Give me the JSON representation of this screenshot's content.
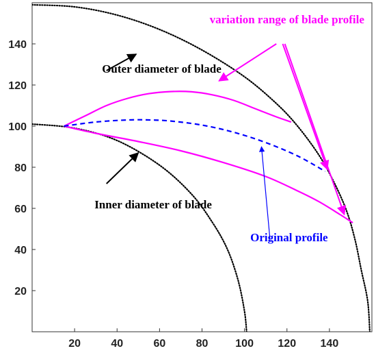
{
  "chart_data": {
    "type": "line",
    "title": "",
    "xlabel": "",
    "ylabel": "",
    "xlim": [
      0,
      160
    ],
    "ylim": [
      0,
      160
    ],
    "xticks": [
      20,
      40,
      60,
      80,
      100,
      120,
      140
    ],
    "yticks": [
      20,
      40,
      60,
      80,
      100,
      120,
      140
    ],
    "grid": false,
    "series": [
      {
        "color": "#000000",
        "style": "dotted",
        "points": [
          [
            0,
            101
          ],
          [
            20,
            99
          ],
          [
            40,
            93
          ],
          [
            60,
            81
          ],
          [
            75,
            67
          ],
          [
            85,
            53
          ],
          [
            92,
            40
          ],
          [
            97,
            25
          ],
          [
            100,
            10
          ],
          [
            101,
            0
          ]
        ]
      },
      {
        "color": "#000000",
        "style": "dotted",
        "points": [
          [
            0,
            159
          ],
          [
            20,
            158
          ],
          [
            40,
            154
          ],
          [
            60,
            147
          ],
          [
            80,
            137
          ],
          [
            100,
            124
          ],
          [
            115,
            111
          ],
          [
            125,
            100
          ],
          [
            135,
            86
          ],
          [
            142,
            73
          ],
          [
            148,
            59
          ],
          [
            152,
            45
          ],
          [
            155,
            30
          ],
          [
            158,
            15
          ],
          [
            159,
            0
          ]
        ]
      },
      {
        "color": "#ff00ff",
        "style": "solid",
        "points": [
          [
            15,
            100
          ],
          [
            25,
            105
          ],
          [
            35,
            110
          ],
          [
            45,
            113.5
          ],
          [
            55,
            115.8
          ],
          [
            65,
            116.8
          ],
          [
            75,
            116.7
          ],
          [
            85,
            115.2
          ],
          [
            95,
            112.5
          ],
          [
            105,
            108.5
          ],
          [
            115,
            104.5
          ],
          [
            122,
            102
          ]
        ]
      },
      {
        "color": "#ff00ff",
        "style": "solid",
        "points": [
          [
            15,
            100
          ],
          [
            30,
            96.5
          ],
          [
            50,
            92.5
          ],
          [
            70,
            88
          ],
          [
            90,
            82.3
          ],
          [
            110,
            75.5
          ],
          [
            125,
            68.5
          ],
          [
            135,
            63.3
          ],
          [
            145,
            57
          ],
          [
            151,
            53
          ]
        ]
      },
      {
        "color": "#0000ff",
        "style": "dashed",
        "points": [
          [
            15,
            100
          ],
          [
            30,
            102
          ],
          [
            45,
            103
          ],
          [
            55,
            103
          ],
          [
            65,
            102.5
          ],
          [
            80,
            100.5
          ],
          [
            95,
            97
          ],
          [
            110,
            92
          ],
          [
            125,
            85.5
          ],
          [
            138,
            78
          ]
        ]
      }
    ],
    "annotations": [
      {
        "text": "variation range of blade profile",
        "x": 120,
        "y": 150,
        "color": "#ff00ff"
      },
      {
        "text": "Outer diameter of blade",
        "x": 61,
        "y": 126,
        "color": "#000000"
      },
      {
        "text": "Inner diameter of blade",
        "x": 57,
        "y": 60,
        "color": "#000000"
      },
      {
        "text": "Original profile",
        "x": 121,
        "y": 44,
        "color": "#0000ff"
      }
    ],
    "arrows": [
      {
        "from": [
          35,
          127
        ],
        "to": [
          49,
          135
        ],
        "color": "#000000"
      },
      {
        "from": [
          35,
          72
        ],
        "to": [
          50,
          87
        ],
        "color": "#000000"
      },
      {
        "from": [
          115,
          140
        ],
        "to": [
          88,
          122
        ],
        "color": "#ff00ff"
      },
      {
        "from": [
          118,
          140
        ],
        "to": [
          139,
          79
        ],
        "color": "#ff00ff"
      },
      {
        "from": [
          119,
          140
        ],
        "to": [
          147,
          57
        ],
        "color": "#ff00ff"
      },
      {
        "from": [
          112,
          45
        ],
        "to": [
          108,
          90
        ],
        "color": "#0000ff"
      }
    ]
  }
}
